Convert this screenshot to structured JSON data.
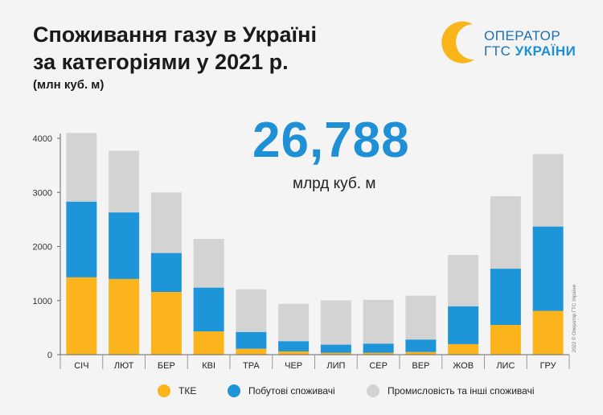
{
  "header": {
    "title_line1": "Споживання газу в Україні",
    "title_line2": "за категоріями у 2021 р.",
    "subtitle": "(млн куб. м)"
  },
  "logo": {
    "line1": "ОПЕРАТОР",
    "line2_prefix": "ГТС ",
    "line2_accent": "УКРАЇНИ",
    "colors": {
      "yellow": "#f9b519",
      "blue": "#1b8fd6"
    }
  },
  "total": {
    "value": "26,788",
    "unit": "млрд куб. м"
  },
  "credit": "2022 © Оператор ГТС України",
  "chart_data": {
    "type": "bar",
    "stacked": true,
    "categories": [
      "СІЧ",
      "ЛЮТ",
      "БЕР",
      "КВІ",
      "ТРА",
      "ЧЕР",
      "ЛИП",
      "СЕР",
      "ВЕР",
      "ЖОВ",
      "ЛИС",
      "ГРУ"
    ],
    "series": [
      {
        "name": "ТКЕ",
        "color": "#fcb41c",
        "values": [
          1430,
          1400,
          1160,
          430,
          110,
          60,
          35,
          35,
          50,
          195,
          550,
          810
        ]
      },
      {
        "name": "Побутові споживачі",
        "color": "#1e95d8",
        "values": [
          1400,
          1230,
          720,
          810,
          310,
          190,
          150,
          170,
          230,
          700,
          1040,
          1560
        ]
      },
      {
        "name": "Промисловість та інші споживачі",
        "color": "#d3d3d3",
        "values": [
          1270,
          1140,
          1120,
          900,
          790,
          690,
          820,
          810,
          810,
          950,
          1340,
          1340
        ]
      }
    ],
    "ylim": [
      0,
      4000
    ],
    "yticks": [
      0,
      1000,
      2000,
      3000,
      4000
    ],
    "grid": false,
    "legend": "bottom"
  }
}
